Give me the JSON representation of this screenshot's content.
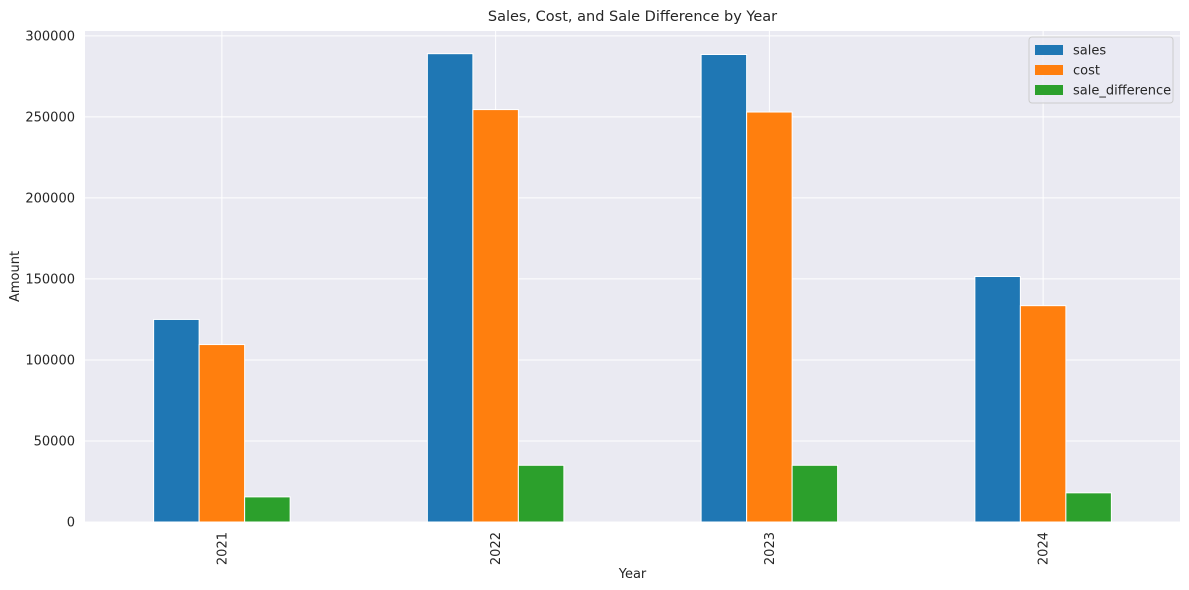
{
  "chart_data": {
    "type": "bar",
    "title": "Sales, Cost, and Sale Difference by Year",
    "xlabel": "Year",
    "ylabel": "Amount",
    "categories": [
      "2021",
      "2022",
      "2023",
      "2024"
    ],
    "series": [
      {
        "name": "sales",
        "color": "#1f77b4",
        "values": [
          125000,
          289000,
          288500,
          151500
        ]
      },
      {
        "name": "cost",
        "color": "#ff7f0e",
        "values": [
          109500,
          254500,
          253000,
          133500
        ]
      },
      {
        "name": "sale_difference",
        "color": "#2ca02c",
        "values": [
          15500,
          35000,
          35000,
          18000
        ]
      }
    ],
    "ylim": [
      0,
      303000
    ],
    "yticks": [
      0,
      50000,
      100000,
      150000,
      200000,
      250000,
      300000
    ],
    "ytick_labels": [
      "0",
      "50000",
      "100000",
      "150000",
      "200000",
      "250000",
      "300000"
    ],
    "grid": true,
    "legend_position": "top-right",
    "background": "#eaeaf2"
  }
}
